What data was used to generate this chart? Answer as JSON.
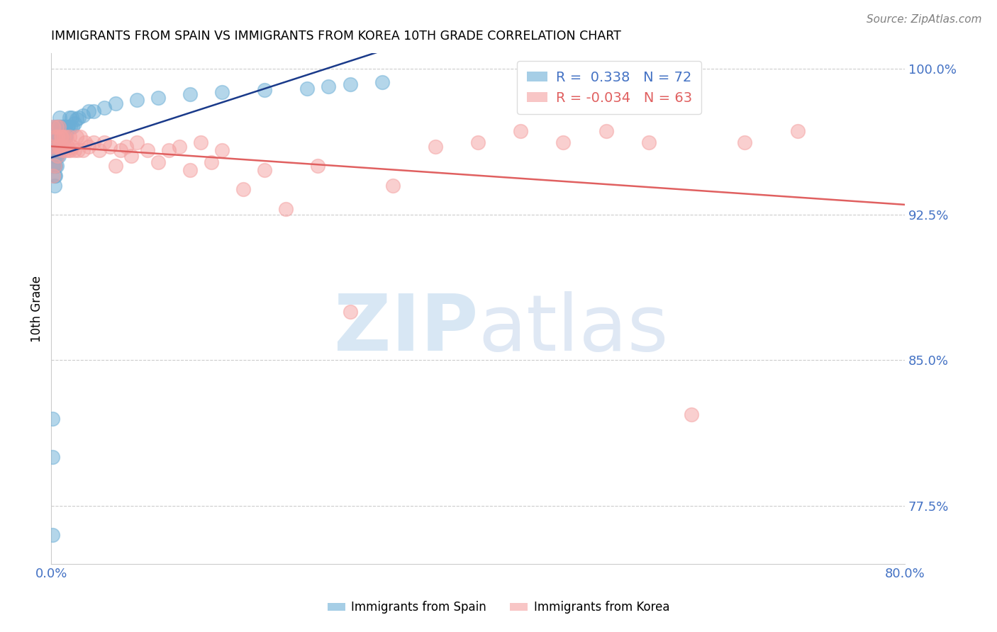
{
  "title": "IMMIGRANTS FROM SPAIN VS IMMIGRANTS FROM KOREA 10TH GRADE CORRELATION CHART",
  "source": "Source: ZipAtlas.com",
  "ylabel": "10th Grade",
  "xlim": [
    0.0,
    0.8
  ],
  "ylim": [
    0.745,
    1.008
  ],
  "ytick_positions": [
    0.775,
    0.85,
    0.925,
    1.0
  ],
  "ytick_labels": [
    "77.5%",
    "85.0%",
    "92.5%",
    "100.0%"
  ],
  "ytick_color": "#4472c4",
  "xtick_color": "#4472c4",
  "R_spain": 0.338,
  "N_spain": 72,
  "R_korea": -0.034,
  "N_korea": 63,
  "spain_color": "#6baed6",
  "korea_color": "#f4a0a0",
  "spain_line_color": "#1a3a8a",
  "korea_line_color": "#e06060",
  "grid_color": "#cccccc",
  "legend_spain_label": "Immigrants from Spain",
  "legend_korea_label": "Immigrants from Korea",
  "spain_x": [
    0.001,
    0.001,
    0.001,
    0.002,
    0.002,
    0.002,
    0.002,
    0.002,
    0.003,
    0.003,
    0.003,
    0.003,
    0.003,
    0.003,
    0.004,
    0.004,
    0.004,
    0.004,
    0.004,
    0.005,
    0.005,
    0.005,
    0.005,
    0.005,
    0.006,
    0.006,
    0.006,
    0.006,
    0.007,
    0.007,
    0.007,
    0.007,
    0.008,
    0.008,
    0.008,
    0.008,
    0.009,
    0.009,
    0.009,
    0.01,
    0.01,
    0.01,
    0.011,
    0.011,
    0.012,
    0.012,
    0.013,
    0.013,
    0.014,
    0.015,
    0.016,
    0.017,
    0.018,
    0.019,
    0.02,
    0.022,
    0.024,
    0.026,
    0.03,
    0.035,
    0.04,
    0.05,
    0.06,
    0.08,
    0.1,
    0.13,
    0.16,
    0.2,
    0.24,
    0.26,
    0.28,
    0.31
  ],
  "spain_y": [
    0.76,
    0.82,
    0.8,
    0.95,
    0.955,
    0.96,
    0.965,
    0.97,
    0.94,
    0.945,
    0.95,
    0.955,
    0.96,
    0.965,
    0.945,
    0.95,
    0.955,
    0.96,
    0.965,
    0.95,
    0.955,
    0.96,
    0.965,
    0.97,
    0.955,
    0.96,
    0.965,
    0.97,
    0.955,
    0.96,
    0.965,
    0.97,
    0.96,
    0.965,
    0.97,
    0.975,
    0.96,
    0.965,
    0.97,
    0.96,
    0.965,
    0.97,
    0.965,
    0.97,
    0.965,
    0.97,
    0.965,
    0.97,
    0.965,
    0.97,
    0.97,
    0.975,
    0.97,
    0.975,
    0.97,
    0.972,
    0.974,
    0.975,
    0.976,
    0.978,
    0.978,
    0.98,
    0.982,
    0.984,
    0.985,
    0.987,
    0.988,
    0.989,
    0.99,
    0.991,
    0.992,
    0.993
  ],
  "korea_x": [
    0.001,
    0.002,
    0.002,
    0.003,
    0.004,
    0.005,
    0.005,
    0.006,
    0.006,
    0.007,
    0.007,
    0.008,
    0.009,
    0.01,
    0.01,
    0.011,
    0.012,
    0.013,
    0.014,
    0.015,
    0.016,
    0.017,
    0.018,
    0.02,
    0.022,
    0.024,
    0.025,
    0.027,
    0.03,
    0.032,
    0.035,
    0.04,
    0.045,
    0.05,
    0.055,
    0.06,
    0.065,
    0.07,
    0.075,
    0.08,
    0.09,
    0.1,
    0.11,
    0.12,
    0.13,
    0.14,
    0.15,
    0.16,
    0.18,
    0.2,
    0.22,
    0.25,
    0.28,
    0.32,
    0.36,
    0.4,
    0.44,
    0.48,
    0.52,
    0.56,
    0.6,
    0.65,
    0.7
  ],
  "korea_y": [
    0.96,
    0.945,
    0.97,
    0.95,
    0.965,
    0.96,
    0.97,
    0.955,
    0.965,
    0.96,
    0.97,
    0.96,
    0.965,
    0.958,
    0.965,
    0.96,
    0.965,
    0.958,
    0.965,
    0.96,
    0.958,
    0.965,
    0.958,
    0.96,
    0.958,
    0.965,
    0.958,
    0.965,
    0.958,
    0.962,
    0.96,
    0.962,
    0.958,
    0.962,
    0.96,
    0.95,
    0.958,
    0.96,
    0.955,
    0.962,
    0.958,
    0.952,
    0.958,
    0.96,
    0.948,
    0.962,
    0.952,
    0.958,
    0.938,
    0.948,
    0.928,
    0.95,
    0.875,
    0.94,
    0.96,
    0.962,
    0.968,
    0.962,
    0.968,
    0.962,
    0.822,
    0.962,
    0.968
  ]
}
